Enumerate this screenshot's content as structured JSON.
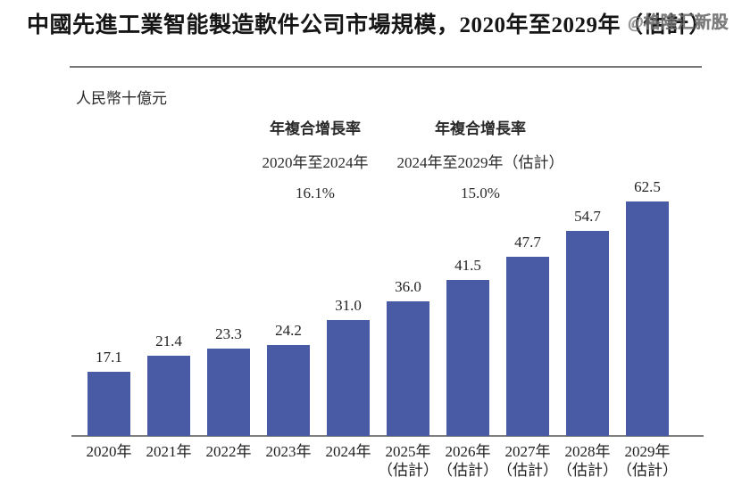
{
  "page": {
    "title": "中國先進工業智能製造軟件公司市場規模，2020年至2029年（估計）",
    "watermark": "@格隆汇新股",
    "unit_label": "人民幣十億元"
  },
  "cagr": [
    {
      "heading": "年複合增長率",
      "period": "2020年至2024年",
      "value": "16.1%"
    },
    {
      "heading": "年複合增長率",
      "period": "2024年至2029年（估計）",
      "value": "15.0%"
    }
  ],
  "chart_data": {
    "type": "bar",
    "title": "中國先進工業智能製造軟件公司市場規模，2020年至2029年（估計）",
    "ylabel": "人民幣十億元",
    "xlabel": "",
    "categories": [
      "2020年",
      "2021年",
      "2022年",
      "2023年",
      "2024年",
      "2025年",
      "2026年",
      "2027年",
      "2028年",
      "2029年"
    ],
    "category_notes": [
      "",
      "",
      "",
      "",
      "",
      "（估計）",
      "（估計）",
      "（估計）",
      "（估計）",
      "（估計）"
    ],
    "values": [
      17.1,
      21.4,
      23.3,
      24.2,
      31.0,
      36.0,
      41.5,
      47.7,
      54.7,
      62.5
    ],
    "data_labels": [
      "17.1",
      "21.4",
      "23.3",
      "24.2",
      "31.0",
      "36.0",
      "41.5",
      "47.7",
      "54.7",
      "62.5"
    ],
    "annotations": [
      {
        "text": "年複合增長率 2020年至2024年 16.1%"
      },
      {
        "text": "年複合增長率 2024年至2029年（估計） 15.0%"
      }
    ],
    "bar_color": "#4A5BA6",
    "axis_color": "#7E7E7E",
    "label_color": "#1F1F1F",
    "ylim": [
      0,
      65
    ],
    "grid": false,
    "legend": false
  }
}
